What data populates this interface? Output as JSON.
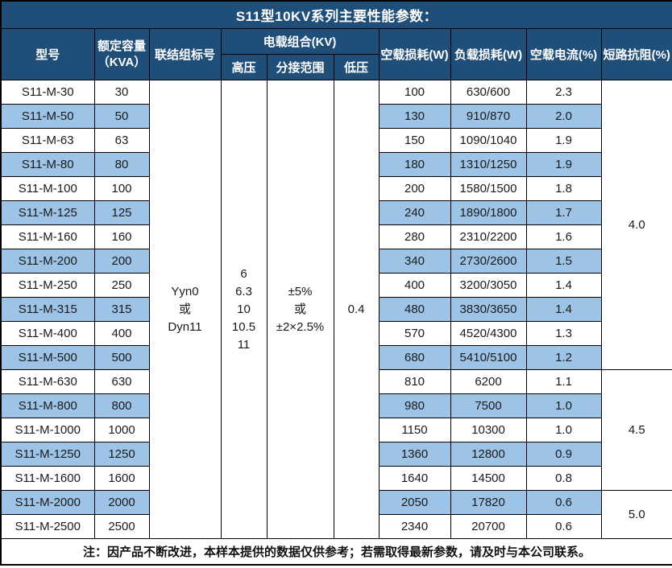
{
  "title": "S11型10KV系列主要性能参数：",
  "colors": {
    "header_bg": "#1F4E79",
    "header_text": "#ffffff",
    "alt_row_bg": "#9DC3E6",
    "border": "#000000"
  },
  "header": {
    "model": "型号",
    "capacity": "额定容量\n（KVA）",
    "connection_group": "联结组标号",
    "voltage_combo": "电载组合(KV)",
    "high_voltage": "高压",
    "tap_range": "分接范围",
    "low_voltage": "低压",
    "no_load_loss": "空载损耗(W)",
    "load_loss": "负载损耗(W)",
    "no_load_current": "空载电流(%)",
    "short_circuit_impedance": "短路抗阻(%)"
  },
  "merged": {
    "connection_group": "Yyn0\n或\nDyn11",
    "high_voltage": "6\n6.3\n10\n10.5\n11",
    "tap_range": "±5%\n或\n±2×2.5%",
    "low_voltage": "0.4"
  },
  "rows": [
    {
      "model": "S11-M-30",
      "kva": "30",
      "no_load_loss": "100",
      "load_loss": "630/600",
      "no_load_current": "2.3"
    },
    {
      "model": "S11-M-50",
      "kva": "50",
      "no_load_loss": "130",
      "load_loss": "910/870",
      "no_load_current": "2.0"
    },
    {
      "model": "S11-M-63",
      "kva": "63",
      "no_load_loss": "150",
      "load_loss": "1090/1040",
      "no_load_current": "1.9"
    },
    {
      "model": "S11-M-80",
      "kva": "80",
      "no_load_loss": "180",
      "load_loss": "1310/1250",
      "no_load_current": "1.9"
    },
    {
      "model": "S11-M-100",
      "kva": "100",
      "no_load_loss": "200",
      "load_loss": "1580/1500",
      "no_load_current": "1.8"
    },
    {
      "model": "S11-M-125",
      "kva": "125",
      "no_load_loss": "240",
      "load_loss": "1890/1800",
      "no_load_current": "1.7"
    },
    {
      "model": "S11-M-160",
      "kva": "160",
      "no_load_loss": "280",
      "load_loss": "2310/2200",
      "no_load_current": "1.6"
    },
    {
      "model": "S11-M-200",
      "kva": "200",
      "no_load_loss": "340",
      "load_loss": "2730/2600",
      "no_load_current": "1.5"
    },
    {
      "model": "S11-M-250",
      "kva": "250",
      "no_load_loss": "400",
      "load_loss": "3200/3050",
      "no_load_current": "1.4"
    },
    {
      "model": "S11-M-315",
      "kva": "315",
      "no_load_loss": "480",
      "load_loss": "3830/3650",
      "no_load_current": "1.4"
    },
    {
      "model": "S11-M-400",
      "kva": "400",
      "no_load_loss": "570",
      "load_loss": "4520/4300",
      "no_load_current": "1.3"
    },
    {
      "model": "S11-M-500",
      "kva": "500",
      "no_load_loss": "680",
      "load_loss": "5410/5100",
      "no_load_current": "1.2"
    },
    {
      "model": "S11-M-630",
      "kva": "630",
      "no_load_loss": "810",
      "load_loss": "6200",
      "no_load_current": "1.1"
    },
    {
      "model": "S11-M-800",
      "kva": "800",
      "no_load_loss": "980",
      "load_loss": "7500",
      "no_load_current": "1.0"
    },
    {
      "model": "S11-M-1000",
      "kva": "1000",
      "no_load_loss": "1150",
      "load_loss": "10300",
      "no_load_current": "1.0"
    },
    {
      "model": "S11-M-1250",
      "kva": "1250",
      "no_load_loss": "1360",
      "load_loss": "12800",
      "no_load_current": "0.9"
    },
    {
      "model": "S11-M-1600",
      "kva": "1600",
      "no_load_loss": "1640",
      "load_loss": "14500",
      "no_load_current": "0.8"
    },
    {
      "model": "S11-M-2000",
      "kva": "2000",
      "no_load_loss": "2050",
      "load_loss": "17820",
      "no_load_current": "0.6"
    },
    {
      "model": "S11-M-2500",
      "kva": "2500",
      "no_load_loss": "2340",
      "load_loss": "20700",
      "no_load_current": "0.6"
    }
  ],
  "impedance_blocks": [
    {
      "value": "4.0",
      "start": 0,
      "span": 12
    },
    {
      "value": "4.5",
      "start": 12,
      "span": 5
    },
    {
      "value": "5.0",
      "start": 17,
      "span": 2
    }
  ],
  "note": "注：因产品不断改进，本样本提供的数据仅供参考；若需取得最新参数，请及时与本公司联系。"
}
